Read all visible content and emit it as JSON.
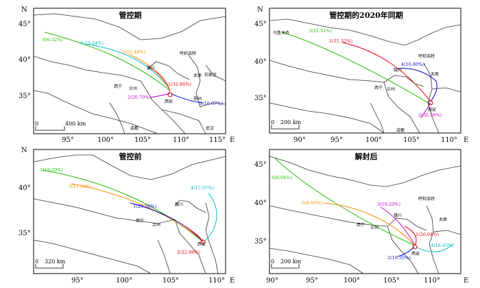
{
  "axis": {
    "north": "N",
    "east": "E"
  },
  "panels": [
    {
      "title": "管控期",
      "lat_ticks": [
        "45°",
        "40°",
        "35°"
      ],
      "lon_ticks": [
        "95°",
        "100°",
        "105°",
        "110°",
        "115°"
      ],
      "scale": "400 km",
      "cities": [
        "银川",
        "呼和浩特",
        "太原",
        "石家庄",
        "西宁",
        "兰州",
        "西安",
        "郑州",
        "成都",
        "武汉"
      ],
      "trajectories": [
        {
          "label": "1(32.86%)",
          "color": "#e8000b"
        },
        {
          "label": "2(20.70%)",
          "color": "#c000c0"
        },
        {
          "label": "3(16.67%)",
          "color": "#0000cc"
        },
        {
          "label": "4(13.04%)",
          "color": "#00b8c8"
        },
        {
          "label": "5(10.48%)",
          "color": "#ff8c00"
        },
        {
          "label": "6(6.32%)",
          "color": "#22bb00"
        }
      ]
    },
    {
      "title": "管控期的2020年同期",
      "lat_ticks": [
        "45°",
        "40°",
        "35°"
      ],
      "lon_ticks": [
        "90°",
        "95°",
        "100°",
        "105°",
        "110°"
      ],
      "scale": "200 km",
      "cities": [
        "乌鲁木齐",
        "呼和浩特",
        "银川",
        "太原",
        "西宁",
        "兰州",
        "西安",
        "成都"
      ],
      "trajectories": [
        {
          "label": "1(31.32%)",
          "color": "#e8000b"
        },
        {
          "label": "2(30.38%)",
          "color": "#c000c0"
        },
        {
          "label": "3(21.51%)",
          "color": "#22bb00"
        },
        {
          "label": "4(16.80%)",
          "color": "#0000cc"
        }
      ]
    },
    {
      "title": "管控前",
      "lat_ticks": [
        "40°",
        "35°"
      ],
      "lon_ticks": [
        "95°",
        "100°",
        "105°",
        "110°"
      ],
      "scale": "320 km",
      "cities": [
        "银川",
        "西宁",
        "兰州",
        "西安"
      ],
      "trajectories": [
        {
          "label": "1(29.70%)",
          "color": "#0000cc"
        },
        {
          "label": "2(22.98%)",
          "color": "#e8000b"
        },
        {
          "label": "3(19.09%)",
          "color": "#22bb00"
        },
        {
          "label": "4(17.07%)",
          "color": "#00b8c8"
        },
        {
          "label": "5(11.16%)",
          "color": "#ff8c00"
        }
      ]
    },
    {
      "title": "解封后",
      "lat_ticks": [
        "45°",
        "40°",
        "35°"
      ],
      "lon_ticks": [
        "90°",
        "95°",
        "100°",
        "105°",
        "110°"
      ],
      "scale": "200 km",
      "cities": [
        "呼和浩特",
        "银川",
        "太原",
        "西宁",
        "兰州",
        "西安"
      ],
      "trajectories": [
        {
          "label": "1(26.04%)",
          "color": "#e8000b"
        },
        {
          "label": "2(19.35%)",
          "color": "#0000cc"
        },
        {
          "label": "3(19.20%)",
          "color": "#c000c0"
        },
        {
          "label": "4(18.45%)",
          "color": "#00b8c8"
        },
        {
          "label": "5(8.93%)",
          "color": "#ff8c00"
        },
        {
          "label": "6(8.04%)",
          "color": "#22bb00"
        }
      ]
    }
  ]
}
